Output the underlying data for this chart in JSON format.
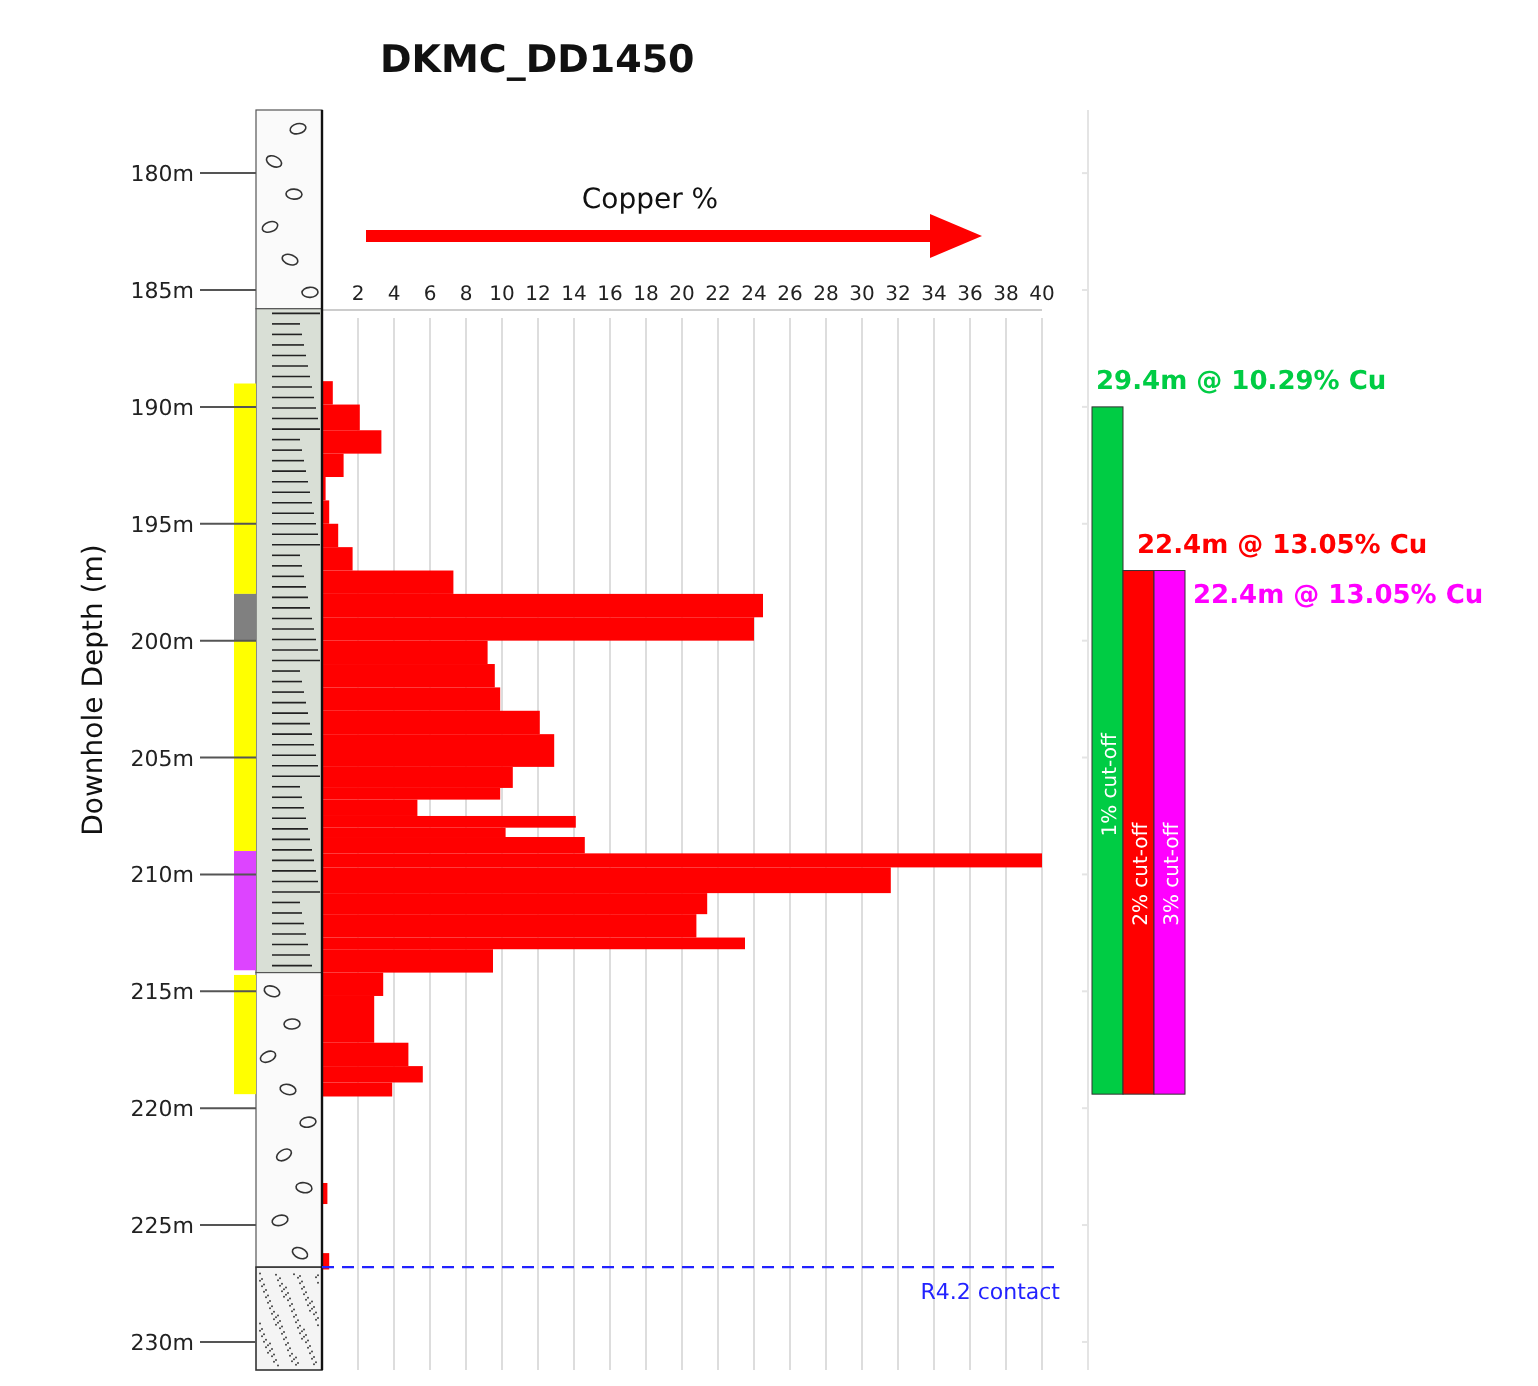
{
  "chart_data": [
    {
      "type": "histogram",
      "orientation": "horizontal",
      "title": "DKMC_DD1450",
      "xlabel": "Copper %",
      "ylabel": "Downhole Depth (m)",
      "bins": [
        188.9,
        189.9,
        191,
        192,
        193,
        194,
        195,
        196,
        197,
        198,
        199,
        200,
        201,
        202,
        203,
        204,
        205.4,
        206.3,
        206.8,
        207.5,
        208,
        208.4,
        209.1,
        209.7,
        210.8,
        211.7,
        212.7,
        213.2,
        214.2,
        215.2,
        217.2,
        218.2,
        218.9,
        219.5,
        223.2,
        224.1,
        226.2,
        226.9
      ],
      "values": [
        0.6,
        2.1,
        3.3,
        1.2,
        0.2,
        0.4,
        0.9,
        1.7,
        7.3,
        24.5,
        24,
        9.2,
        9.6,
        9.9,
        12.1,
        12.9,
        10.6,
        9.9,
        5.3,
        14.1,
        10.2,
        14.6,
        40,
        31.6,
        21.4,
        20.8,
        23.5,
        9.5,
        3.4,
        2.9,
        4.8,
        5.6,
        3.9,
        null,
        0.3,
        null,
        0.4
      ],
      "color": "#ff0000",
      "xlim": [
        0,
        40
      ],
      "xticks": [
        2,
        4,
        6,
        8,
        10,
        12,
        14,
        16,
        18,
        20,
        22,
        24,
        26,
        28,
        30,
        32,
        34,
        36,
        38,
        40
      ],
      "ylim": [
        231.2,
        177.3
      ],
      "yticks": [
        {
          "value": 180,
          "label": "180m"
        },
        {
          "value": 185,
          "label": "185m"
        },
        {
          "value": 190,
          "label": "190m"
        },
        {
          "value": 195,
          "label": "195m"
        },
        {
          "value": 200,
          "label": "200m"
        },
        {
          "value": 205,
          "label": "205m"
        },
        {
          "value": 210,
          "label": "210m"
        },
        {
          "value": 215,
          "label": "215m"
        },
        {
          "value": 220,
          "label": "220m"
        },
        {
          "value": 225,
          "label": "225m"
        },
        {
          "value": 230,
          "label": "230m"
        }
      ],
      "grid": "x",
      "ref_lines": [
        {
          "axis": "y",
          "value": 226.8,
          "label": "R4.2 contact",
          "color": "#2222ff",
          "line_style": "dashed"
        }
      ]
    },
    {
      "type": "bar",
      "categories": [
        "1% cut-off",
        "2% cut-off",
        "3% cut-off"
      ],
      "base": [
        190,
        197,
        197
      ],
      "values": [
        29.4,
        22.4,
        22.4
      ],
      "colors": [
        "#00cc44",
        "#ff0000",
        "#ff00ff"
      ],
      "annotations": [
        "29.4m @ 10.29% Cu",
        "22.4m @ 13.05% Cu",
        "22.4m @ 13.05% Cu"
      ],
      "ylim": [
        231.2,
        177.3
      ],
      "yticks": [
        180,
        185,
        190,
        195,
        200,
        205,
        210,
        215,
        220,
        225,
        230
      ],
      "tick_labels": false
    }
  ]
}
